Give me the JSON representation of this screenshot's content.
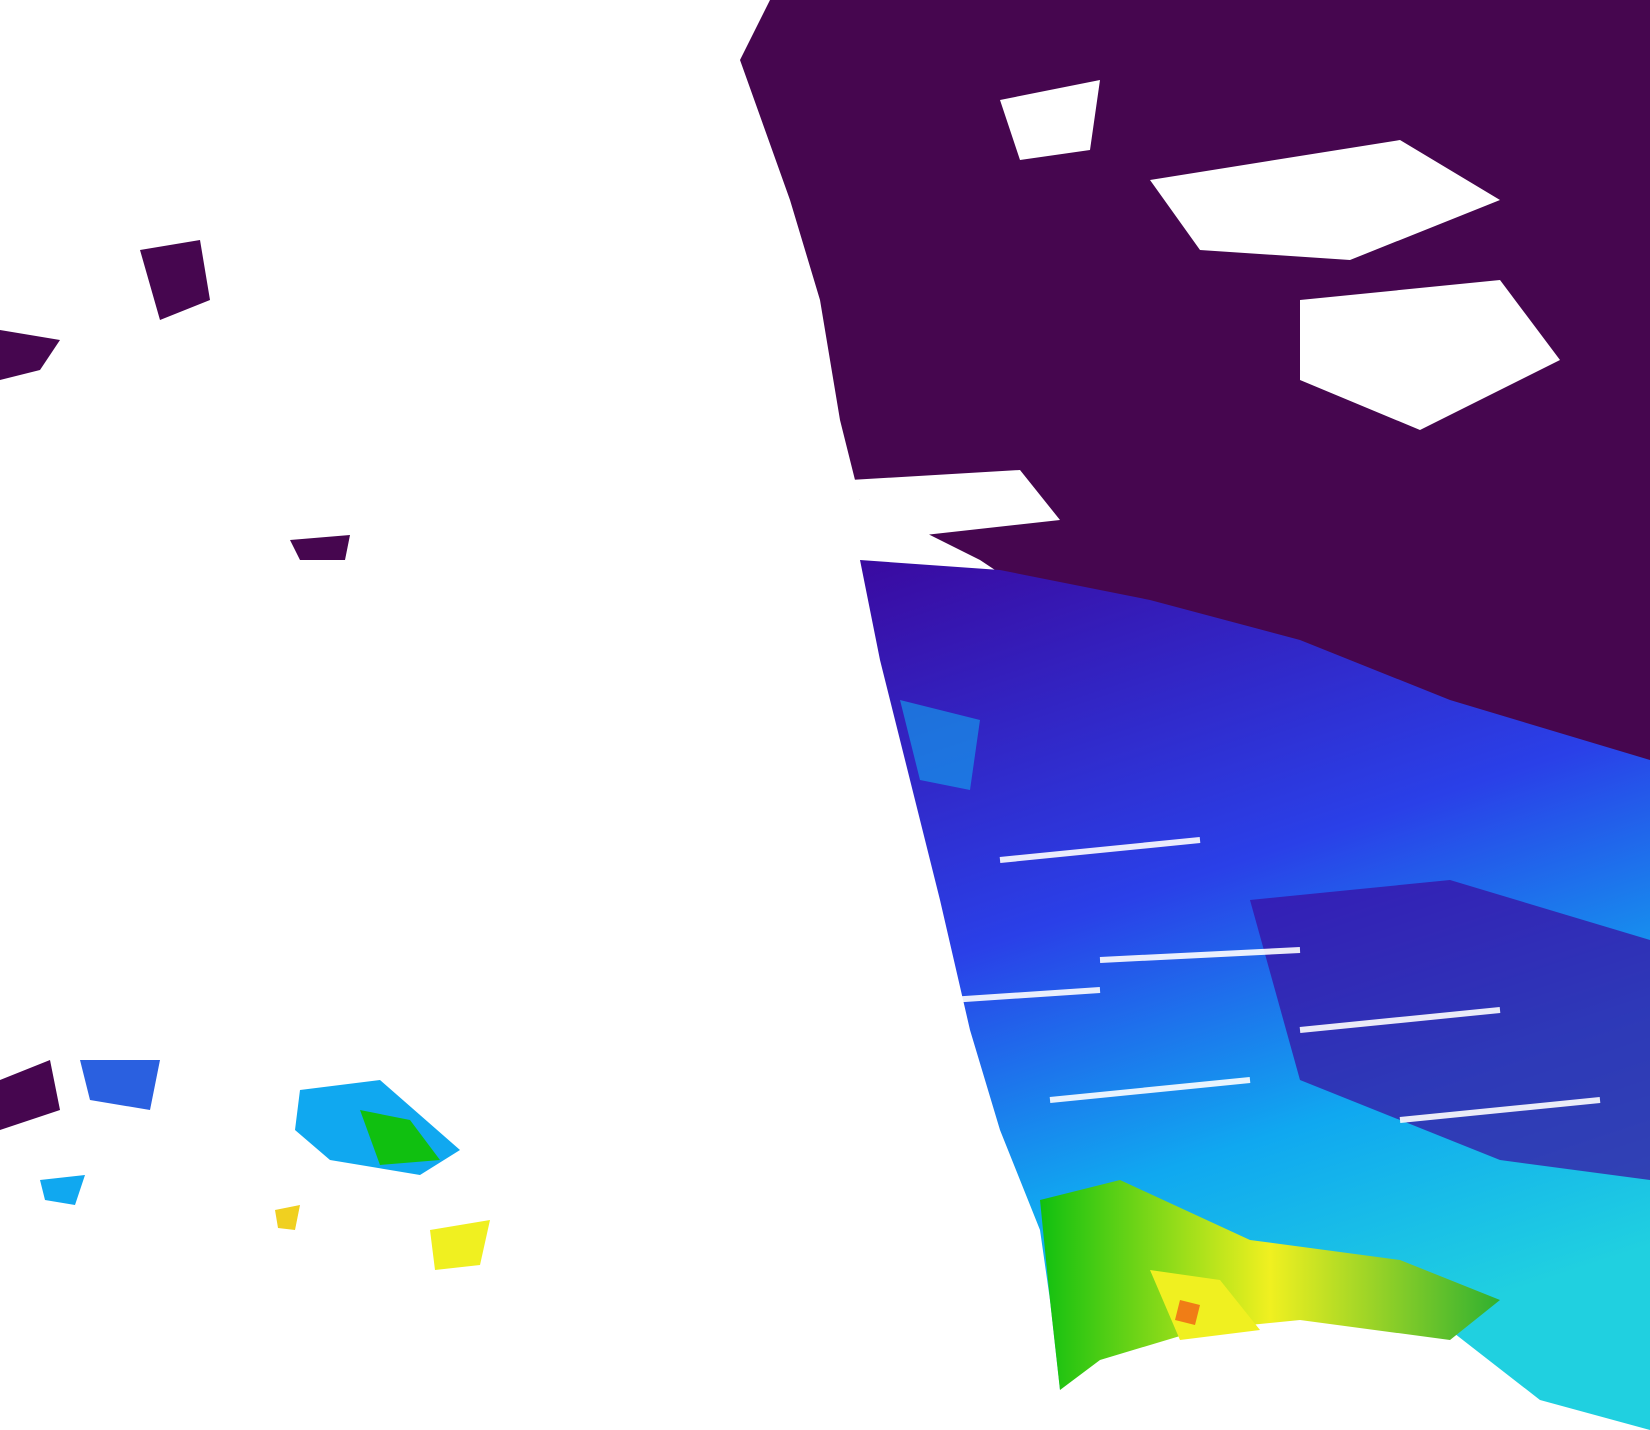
{
  "image": {
    "kind": "satellite ocean color composite",
    "background": "#ffffff",
    "colors": {
      "cloud_mask": "#46064f",
      "low": "#3a0aa0",
      "mid_low": "#2a40e8",
      "mid": "#10a8f0",
      "mid_high": "#20d0e0",
      "high": "#10c010",
      "very_high": "#f0f020",
      "max": "#f03010"
    }
  }
}
